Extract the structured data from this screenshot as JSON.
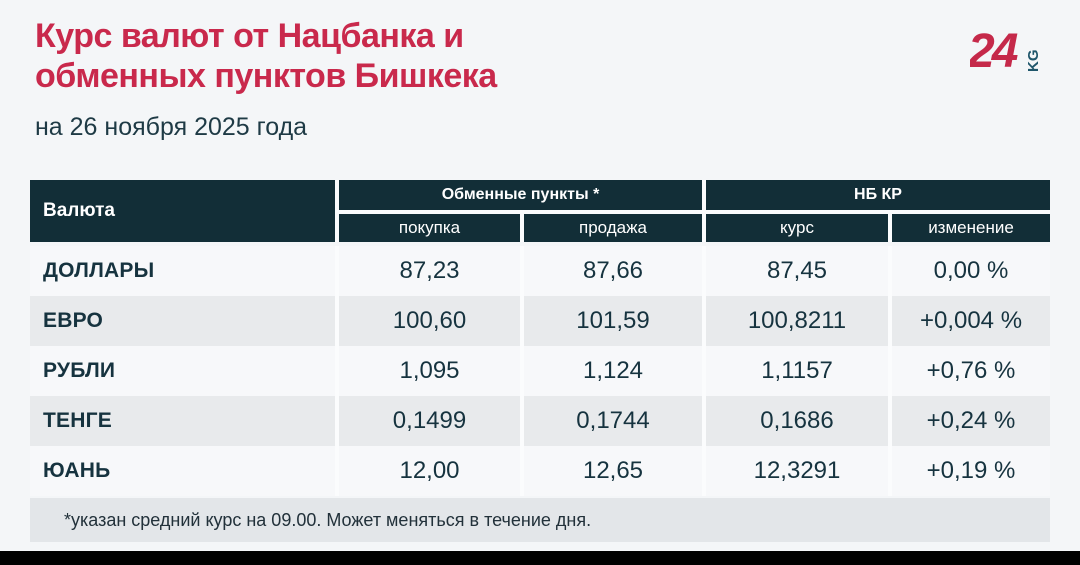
{
  "header": {
    "title_line1": "Курс валют от Нацбанка и",
    "title_line2": "обменных пунктов Бишкека",
    "subtitle": "на 26 ноября 2025 года",
    "logo": {
      "number": "24",
      "suffix": "KG"
    }
  },
  "chart_data": {
    "type": "table",
    "title": "Курс валют от Нацбанка и обменных пунктов Бишкека",
    "subtitle": "на 26 ноября 2025 года",
    "column_groups": [
      "Обменные пункты *",
      "НБ КР"
    ],
    "columns": [
      "Валюта",
      "покупка",
      "продажа",
      "курс",
      "изменение"
    ],
    "rows": [
      [
        "ДОЛЛАРЫ",
        "87,23",
        "87,66",
        "87,45",
        "0,00 %"
      ],
      [
        "ЕВРО",
        "100,60",
        "101,59",
        "100,8211",
        "+0,004 %"
      ],
      [
        "РУБЛИ",
        "1,095",
        "1,124",
        "1,1157",
        "+0,76 %"
      ],
      [
        "ТЕНГЕ",
        "0,1499",
        "0,1744",
        "0,1686",
        "+0,24 %"
      ],
      [
        "ЮАНЬ",
        "12,00",
        "12,65",
        "12,3291",
        "+0,19 %"
      ]
    ],
    "footnote": "*указан средний курс на 09.00. Может меняться в течение дня."
  },
  "colors": {
    "accent_red": "#C9294C",
    "header_dark": "#122E37",
    "logo_teal": "#1F566B",
    "row_light": "#F7F8FA",
    "row_gray": "#E8EAEC",
    "note_bg": "#E3E6E9",
    "text_dark": "#16333F",
    "page_bg": "#F4F6F8",
    "bottom_band": "#000000"
  }
}
